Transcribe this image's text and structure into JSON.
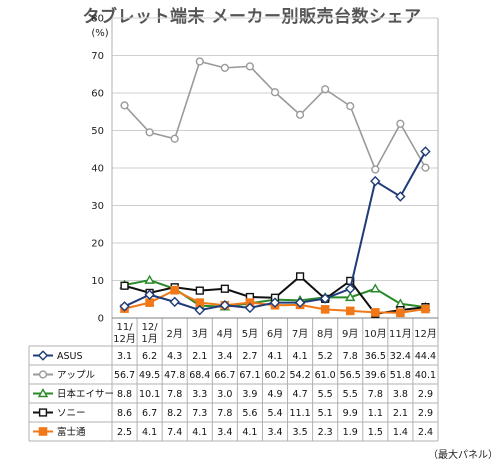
{
  "chart_data": {
    "type": "line",
    "title": "タブレット端末 メーカー別販売台数シェア",
    "unit_label": "(%)",
    "note": "（最大パネル）",
    "ylim": [
      0,
      80
    ],
    "yticks": [
      0,
      10,
      20,
      30,
      40,
      50,
      60,
      70,
      80
    ],
    "grid": "horizontal",
    "categories": [
      "11/12月",
      "12/1月",
      "2月",
      "3月",
      "4月",
      "5月",
      "6月",
      "7月",
      "8月",
      "9月",
      "10月",
      "11月",
      "12月"
    ],
    "category_lines": [
      [
        "11/",
        "12月"
      ],
      [
        "12/",
        "1月"
      ],
      [
        "2月"
      ],
      [
        "3月"
      ],
      [
        "4月"
      ],
      [
        "5月"
      ],
      [
        "6月"
      ],
      [
        "7月"
      ],
      [
        "8月"
      ],
      [
        "9月"
      ],
      [
        "10月"
      ],
      [
        "11月"
      ],
      [
        "12月"
      ]
    ],
    "series": [
      {
        "name": "ASUS",
        "color": "#1f3c78",
        "marker": "diamond",
        "values": [
          3.1,
          6.2,
          4.3,
          2.1,
          3.4,
          2.7,
          4.1,
          4.1,
          5.2,
          7.8,
          36.5,
          32.4,
          44.4
        ],
        "labels": [
          "3.1",
          "6.2",
          "4.3",
          "2.1",
          "3.4",
          "2.7",
          "4.1",
          "4.1",
          "5.2",
          "7.8",
          "36.5",
          "32.4",
          "44.4"
        ]
      },
      {
        "name": "アップル",
        "color": "#9a9a9a",
        "marker": "circle",
        "values": [
          56.7,
          49.5,
          47.8,
          68.4,
          66.7,
          67.1,
          60.2,
          54.2,
          61.0,
          56.5,
          39.6,
          51.8,
          40.1
        ],
        "labels": [
          "56.7",
          "49.5",
          "47.8",
          "68.4",
          "66.7",
          "67.1",
          "60.2",
          "54.2",
          "61.0",
          "56.5",
          "39.6",
          "51.8",
          "40.1"
        ]
      },
      {
        "name": "日本エイサー",
        "color": "#2a8a2a",
        "marker": "triangle",
        "values": [
          8.8,
          10.1,
          7.8,
          3.3,
          3.0,
          3.9,
          4.9,
          4.7,
          5.5,
          5.5,
          7.8,
          3.8,
          2.9
        ],
        "labels": [
          "8.8",
          "10.1",
          "7.8",
          "3.3",
          "3.0",
          "3.9",
          "4.9",
          "4.7",
          "5.5",
          "5.5",
          "7.8",
          "3.8",
          "2.9"
        ]
      },
      {
        "name": "ソニー",
        "color": "#111111",
        "marker": "square",
        "values": [
          8.6,
          6.7,
          8.2,
          7.3,
          7.8,
          5.6,
          5.4,
          11.1,
          5.1,
          9.9,
          1.1,
          2.1,
          2.9
        ],
        "labels": [
          "8.6",
          "6.7",
          "8.2",
          "7.3",
          "7.8",
          "5.6",
          "5.4",
          "11.1",
          "5.1",
          "9.9",
          "1.1",
          "2.1",
          "2.9"
        ]
      },
      {
        "name": "富士通",
        "color": "#f07818",
        "marker": "filled-square",
        "values": [
          2.5,
          4.1,
          7.4,
          4.1,
          3.4,
          4.1,
          3.4,
          3.5,
          2.3,
          1.9,
          1.5,
          1.4,
          2.4
        ],
        "labels": [
          "2.5",
          "4.1",
          "7.4",
          "4.1",
          "3.4",
          "4.1",
          "3.4",
          "3.5",
          "2.3",
          "1.9",
          "1.5",
          "1.4",
          "2.4"
        ]
      }
    ]
  }
}
